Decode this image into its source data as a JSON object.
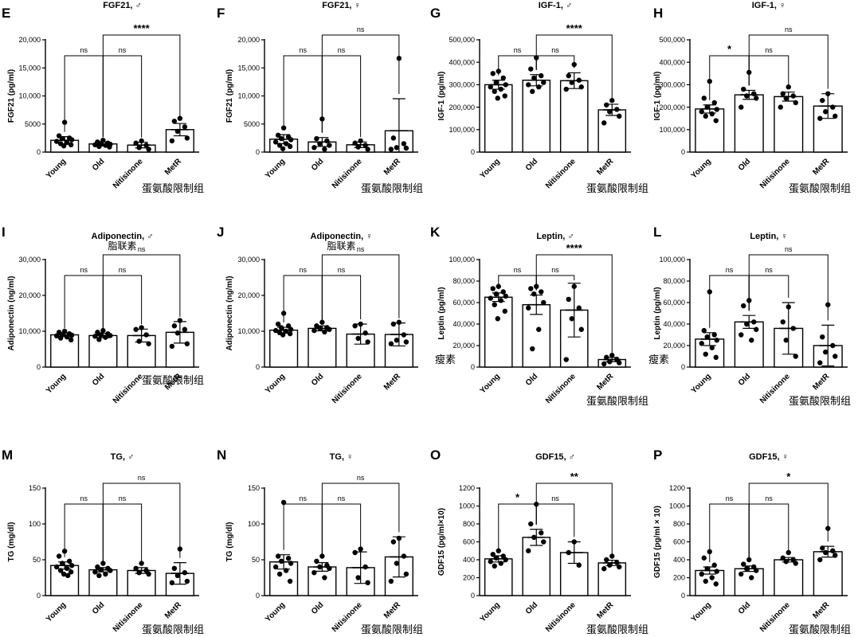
{
  "metr_cn": "蛋氨酸限制组",
  "chart_data": [
    {
      "letter": "E",
      "title": "FGF21, ♂",
      "ylabel": "FGF21 (pg/ml)",
      "ylim": [
        0,
        20000
      ],
      "yticks": [
        "0",
        "5000",
        "10,000",
        "15,000",
        "20,000"
      ],
      "categories": [
        "Young",
        "Old",
        "Nitisinone",
        "MetR"
      ],
      "values": [
        2100,
        1450,
        1250,
        4000
      ],
      "errors": [
        650,
        350,
        500,
        1100
      ],
      "points": [
        [
          5300,
          2900,
          2500,
          2400,
          2200,
          1900,
          1700,
          1500,
          1300,
          1100
        ],
        [
          2100,
          1800,
          1600,
          1500,
          1400,
          1300,
          1200,
          1000,
          900
        ],
        [
          2000,
          1600,
          1200,
          800,
          500
        ],
        [
          6000,
          5500,
          4500,
          3700,
          2500,
          2000
        ]
      ],
      "sig": [
        {
          "from": 0,
          "to": 1,
          "label": "ns"
        },
        {
          "from": 1,
          "to": 2,
          "label": "ns"
        },
        {
          "from": 1,
          "to": 3,
          "label": "****"
        }
      ],
      "cn": "",
      "cnLeft": "",
      "cnBottom": true
    },
    {
      "letter": "F",
      "title": "FGF21, ♀",
      "ylabel": "FGF21 (pg/ml)",
      "ylim": [
        0,
        20000
      ],
      "yticks": [
        "0",
        "5000",
        "10,000",
        "15,000",
        "20,000"
      ],
      "categories": [
        "Young",
        "Old",
        "Nitisinone",
        "MetR"
      ],
      "values": [
        2300,
        1800,
        1300,
        3800
      ],
      "errors": [
        800,
        800,
        500,
        5700
      ],
      "points": [
        [
          4300,
          3000,
          2700,
          2400,
          2200,
          1800,
          1500,
          1200,
          1000,
          600
        ],
        [
          5900,
          2400,
          2000,
          1500,
          1200,
          800,
          500
        ],
        [
          2000,
          1600,
          1200,
          900,
          500
        ],
        [
          16700,
          2500,
          1500,
          800,
          700,
          500
        ]
      ],
      "sig": [
        {
          "from": 0,
          "to": 1,
          "label": "ns"
        },
        {
          "from": 1,
          "to": 2,
          "label": "ns"
        },
        {
          "from": 1,
          "to": 3,
          "label": "ns"
        }
      ],
      "cn": "",
      "cnLeft": "",
      "cnBottom": true
    },
    {
      "letter": "G",
      "title": "IGF-1, ♂",
      "ylabel": "IGF-1 (pg/ml)",
      "ylim": [
        0,
        500000
      ],
      "yticks": [
        "0",
        "100,000",
        "200,000",
        "300,000",
        "400,000",
        "500,000"
      ],
      "categories": [
        "Young",
        "Old",
        "Nitisinone",
        "MetR"
      ],
      "values": [
        300000,
        320000,
        318000,
        188000
      ],
      "errors": [
        20000,
        25000,
        35000,
        25000
      ],
      "points": [
        [
          360000,
          350000,
          330000,
          310000,
          300000,
          290000,
          280000,
          270000,
          250000,
          240000
        ],
        [
          420000,
          370000,
          340000,
          330000,
          310000,
          300000,
          290000,
          270000
        ],
        [
          390000,
          340000,
          320000,
          310000,
          290000,
          280000
        ],
        [
          230000,
          210000,
          190000,
          180000,
          160000,
          130000
        ]
      ],
      "sig": [
        {
          "from": 0,
          "to": 1,
          "label": "ns"
        },
        {
          "from": 1,
          "to": 2,
          "label": "ns"
        },
        {
          "from": 1,
          "to": 3,
          "label": "****"
        }
      ],
      "cn": "",
      "cnLeft": "",
      "cnBottom": true
    },
    {
      "letter": "H",
      "title": "IGF-1, ♀",
      "ylabel": "IGF-1 (pg/ml)",
      "ylim": [
        0,
        500000
      ],
      "yticks": [
        "0",
        "100,000",
        "200,000",
        "300,000",
        "400,000",
        "500,000"
      ],
      "categories": [
        "Young",
        "Old",
        "Nitisinone",
        "MetR"
      ],
      "values": [
        192000,
        255000,
        247000,
        205000
      ],
      "errors": [
        18000,
        20000,
        20000,
        55000
      ],
      "points": [
        [
          315000,
          240000,
          220000,
          200000,
          190000,
          180000,
          170000,
          160000,
          140000
        ],
        [
          355000,
          280000,
          260000,
          250000,
          240000,
          200000
        ],
        [
          290000,
          260000,
          250000,
          240000,
          220000,
          200000
        ],
        [
          260000,
          230000,
          200000,
          180000,
          160000,
          150000
        ]
      ],
      "sig": [
        {
          "from": 0,
          "to": 1,
          "label": "*"
        },
        {
          "from": 1,
          "to": 2,
          "label": "ns"
        },
        {
          "from": 1,
          "to": 3,
          "label": "ns"
        }
      ],
      "cn": "",
      "cnLeft": "",
      "cnBottom": true
    },
    {
      "letter": "I",
      "title": "Adiponectin, ♂",
      "ylabel": "Adiponectin (ng/ml)",
      "ylim": [
        0,
        30000
      ],
      "yticks": [
        "0",
        "10,000",
        "20,000",
        "30,000"
      ],
      "categories": [
        "Young",
        "Old",
        "Nitisinone",
        "MetR"
      ],
      "values": [
        9000,
        8800,
        8800,
        9700
      ],
      "errors": [
        500,
        600,
        1800,
        3000
      ],
      "points": [
        [
          10000,
          9700,
          9300,
          9100,
          8900,
          8700,
          8400,
          8100,
          7600
        ],
        [
          10200,
          9700,
          9300,
          9000,
          8800,
          8600,
          8300,
          7700
        ],
        [
          11000,
          10500,
          9000,
          7200,
          6500
        ],
        [
          13000,
          11500,
          10500,
          9500,
          6500,
          5800
        ]
      ],
      "sig": [
        {
          "from": 0,
          "to": 1,
          "label": "ns"
        },
        {
          "from": 1,
          "to": 2,
          "label": "ns"
        },
        {
          "from": 1,
          "to": 3,
          "label": "ns"
        }
      ],
      "cn": "脂联素",
      "cnLeft": "",
      "cnBottom": true
    },
    {
      "letter": "J",
      "title": "Adiponectin, ♀",
      "ylabel": "Adiponectin (ng/ml)",
      "ylim": [
        0,
        30000
      ],
      "yticks": [
        "0",
        "10,000",
        "20,000",
        "30,000"
      ],
      "categories": [
        "Young",
        "Old",
        "Nitisinone",
        "MetR"
      ],
      "values": [
        10300,
        10800,
        9200,
        9100
      ],
      "errors": [
        800,
        700,
        2800,
        3200
      ],
      "points": [
        [
          15000,
          12000,
          11500,
          11000,
          10500,
          10200,
          10000,
          9600,
          9300,
          9000
        ],
        [
          12500,
          11500,
          11000,
          10800,
          10500,
          10200,
          9800
        ],
        [
          12000,
          11500,
          9500,
          8000,
          7000
        ],
        [
          12500,
          12000,
          9000,
          7500,
          7000,
          6500
        ]
      ],
      "sig": [
        {
          "from": 0,
          "to": 1,
          "label": "ns"
        },
        {
          "from": 1,
          "to": 2,
          "label": "ns"
        },
        {
          "from": 1,
          "to": 3,
          "label": "ns"
        }
      ],
      "cn": "脂联素",
      "cnLeft": "",
      "cnBottom": false
    },
    {
      "letter": "K",
      "title": "Leptin, ♂",
      "ylabel": "Leptin (pg/ml)",
      "ylim": [
        0,
        100000
      ],
      "yticks": [
        "0",
        "20,000",
        "40,000",
        "60,000",
        "80,000",
        "100,000"
      ],
      "categories": [
        "Young",
        "Old",
        "Nitisinone",
        "MetR"
      ],
      "values": [
        65000,
        58000,
        53000,
        7000
      ],
      "errors": [
        4000,
        9000,
        25000,
        2000
      ],
      "points": [
        [
          75000,
          73000,
          70000,
          68000,
          66000,
          64000,
          62000,
          58000,
          52000,
          45000
        ],
        [
          75000,
          73000,
          70000,
          68000,
          60000,
          55000,
          35000,
          17000
        ],
        [
          75000,
          63000,
          55000,
          45000,
          35000,
          7000
        ],
        [
          11000,
          9000,
          7000,
          5000,
          4000,
          3000
        ]
      ],
      "sig": [
        {
          "from": 0,
          "to": 1,
          "label": "ns"
        },
        {
          "from": 1,
          "to": 2,
          "label": "ns"
        },
        {
          "from": 1,
          "to": 3,
          "label": "****"
        }
      ],
      "cn": "",
      "cnLeft": "瘦素",
      "cnBottom": true
    },
    {
      "letter": "L",
      "title": "Leptin, ♀",
      "ylabel": "Leptin (pg/ml)",
      "ylim": [
        0,
        100000
      ],
      "yticks": [
        "0",
        "20,000",
        "40,000",
        "60,000",
        "80,000",
        "100,000"
      ],
      "categories": [
        "Young",
        "Old",
        "Nitisinone",
        "MetR"
      ],
      "values": [
        26000,
        42000,
        36000,
        20000
      ],
      "errors": [
        6000,
        6000,
        24000,
        19000
      ],
      "points": [
        [
          70000,
          34000,
          30000,
          28000,
          25000,
          22000,
          18000,
          12000,
          9000
        ],
        [
          62000,
          57000,
          42000,
          40000,
          35000,
          30000,
          25000
        ],
        [
          56000,
          42000,
          36000,
          25000,
          10000
        ],
        [
          58000,
          28000,
          20000,
          14000,
          10000,
          4000
        ]
      ],
      "sig": [
        {
          "from": 0,
          "to": 1,
          "label": "ns"
        },
        {
          "from": 1,
          "to": 2,
          "label": "ns"
        },
        {
          "from": 1,
          "to": 3,
          "label": "ns"
        }
      ],
      "cn": "",
      "cnLeft": "瘦素",
      "cnBottom": true
    },
    {
      "letter": "M",
      "title": "TG, ♂",
      "ylabel": "TG (mg/dl)",
      "ylim": [
        0,
        150
      ],
      "yticks": [
        "0",
        "50",
        "100",
        "150"
      ],
      "categories": [
        "Young",
        "Old",
        "Nitisinone",
        "MetR"
      ],
      "values": [
        42,
        36,
        35,
        31
      ],
      "errors": [
        5,
        3,
        4,
        15
      ],
      "points": [
        [
          62,
          55,
          48,
          45,
          42,
          40,
          38,
          35,
          33,
          30,
          28
        ],
        [
          45,
          40,
          38,
          36,
          35,
          33,
          30,
          28
        ],
        [
          45,
          38,
          35,
          32,
          30
        ],
        [
          65,
          38,
          32,
          28,
          20,
          18
        ]
      ],
      "sig": [
        {
          "from": 0,
          "to": 1,
          "label": "ns"
        },
        {
          "from": 1,
          "to": 2,
          "label": "ns"
        },
        {
          "from": 1,
          "to": 3,
          "label": "ns"
        }
      ],
      "cn": "",
      "cnLeft": "",
      "cnBottom": true
    },
    {
      "letter": "N",
      "title": "TG, ♀",
      "ylabel": "TG (mg/dl)",
      "ylim": [
        0,
        150
      ],
      "yticks": [
        "0",
        "50",
        "100",
        "150"
      ],
      "categories": [
        "Young",
        "Old",
        "Nitisinone",
        "MetR"
      ],
      "values": [
        47,
        40,
        39,
        54
      ],
      "errors": [
        10,
        6,
        22,
        28
      ],
      "points": [
        [
          130,
          55,
          52,
          48,
          45,
          40,
          35,
          30,
          20
        ],
        [
          55,
          48,
          42,
          40,
          38,
          32,
          25
        ],
        [
          65,
          60,
          40,
          25,
          18
        ],
        [
          80,
          75,
          55,
          45,
          30,
          20
        ]
      ],
      "sig": [
        {
          "from": 0,
          "to": 1,
          "label": "ns"
        },
        {
          "from": 1,
          "to": 2,
          "label": "ns"
        },
        {
          "from": 1,
          "to": 3,
          "label": "ns"
        }
      ],
      "cn": "",
      "cnLeft": "",
      "cnBottom": true
    },
    {
      "letter": "O",
      "title": "GDF15, ♂",
      "ylabel": "GDF15 (pg/ml×10)",
      "ylim": [
        0,
        1200
      ],
      "yticks": [
        "0",
        "200",
        "400",
        "600",
        "800",
        "1000",
        "1200"
      ],
      "categories": [
        "Young",
        "Old",
        "Nitisinone",
        "MetR"
      ],
      "values": [
        410,
        650,
        480,
        365
      ],
      "errors": [
        35,
        90,
        120,
        30
      ],
      "points": [
        [
          500,
          460,
          440,
          420,
          400,
          380,
          360,
          330
        ],
        [
          1020,
          800,
          700,
          650,
          600,
          500
        ],
        [
          600,
          480,
          340
        ],
        [
          440,
          400,
          370,
          340,
          320,
          300
        ]
      ],
      "sig": [
        {
          "from": 0,
          "to": 1,
          "label": "*"
        },
        {
          "from": 1,
          "to": 2,
          "label": "ns"
        },
        {
          "from": 1,
          "to": 3,
          "label": "**"
        }
      ],
      "cn": "",
      "cnLeft": "",
      "cnBottom": true
    },
    {
      "letter": "P",
      "title": "GDF15, ♀",
      "ylabel": "GDF15 (pg/ml × 10)",
      "ylim": [
        0,
        1200
      ],
      "yticks": [
        "0",
        "200",
        "400",
        "600",
        "800",
        "1000",
        "1200"
      ],
      "categories": [
        "Young",
        "Old",
        "Nitisinone",
        "MetR"
      ],
      "values": [
        280,
        300,
        400,
        490
      ],
      "errors": [
        40,
        30,
        25,
        60
      ],
      "points": [
        [
          490,
          420,
          340,
          300,
          270,
          240,
          200,
          160,
          130
        ],
        [
          400,
          350,
          320,
          300,
          280,
          240,
          200
        ],
        [
          480,
          420,
          400,
          380,
          360
        ],
        [
          750,
          530,
          500,
          480,
          450,
          400
        ]
      ],
      "sig": [
        {
          "from": 0,
          "to": 1,
          "label": "ns"
        },
        {
          "from": 1,
          "to": 2,
          "label": "ns"
        },
        {
          "from": 1,
          "to": 3,
          "label": "*"
        }
      ],
      "cn": "",
      "cnLeft": "",
      "cnBottom": true
    }
  ]
}
